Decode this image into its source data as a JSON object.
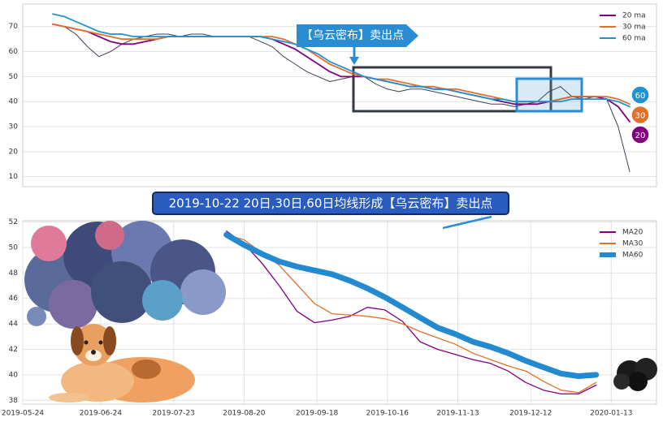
{
  "chart_data": [
    {
      "type": "line",
      "categories": [
        null,
        null,
        null,
        null,
        null,
        null,
        null,
        null,
        null,
        null,
        null,
        null,
        null,
        null,
        null,
        null,
        null,
        null,
        null,
        null,
        null,
        null,
        null,
        null,
        null,
        null,
        null,
        null,
        null,
        null,
        null,
        null,
        null,
        null,
        null,
        null,
        null,
        null,
        null,
        null,
        null,
        null,
        null,
        null,
        null,
        null,
        null,
        null,
        null,
        null,
        null
      ],
      "series": [
        {
          "color": "#3a4256",
          "values": [
            71,
            70,
            67,
            62,
            58,
            60,
            63,
            65,
            66,
            67,
            67,
            66,
            67,
            67,
            66,
            66,
            66,
            66,
            64,
            62,
            58,
            55,
            52,
            50,
            48,
            49,
            50,
            50,
            47,
            45,
            44,
            45,
            45,
            44,
            43,
            42,
            41,
            40,
            39,
            39,
            38,
            39,
            40,
            44,
            46,
            42,
            41,
            42,
            41,
            30,
            12
          ]
        },
        {
          "name": "20 ma",
          "color": "#800080",
          "end_label": "20",
          "values": [
            71,
            70,
            69,
            68,
            66,
            64,
            63,
            63,
            64,
            65,
            66,
            66,
            66,
            66,
            66,
            66,
            66,
            66,
            66,
            65,
            63,
            61,
            58,
            55,
            52,
            50,
            50,
            50,
            49,
            48,
            47,
            46,
            46,
            45,
            45,
            44,
            43,
            42,
            41,
            40,
            39,
            39,
            39,
            40,
            41,
            42,
            42,
            42,
            41,
            38,
            32
          ]
        },
        {
          "name": "30 ma",
          "color": "#e0702a",
          "end_label": "30",
          "values": [
            71,
            70,
            69,
            68,
            67,
            66,
            65,
            65,
            65,
            65,
            66,
            66,
            66,
            66,
            66,
            66,
            66,
            66,
            66,
            66,
            65,
            63,
            61,
            58,
            55,
            53,
            51,
            50,
            49,
            49,
            48,
            47,
            46,
            46,
            45,
            45,
            44,
            43,
            42,
            41,
            40,
            40,
            40,
            40,
            41,
            42,
            42,
            42,
            42,
            41,
            39
          ]
        },
        {
          "name": "60 ma",
          "color": "#1f93d2",
          "end_label": "60",
          "values": [
            75,
            74,
            72,
            70,
            68,
            67,
            67,
            66,
            66,
            66,
            66,
            66,
            66,
            66,
            66,
            66,
            66,
            66,
            66,
            65,
            64,
            63,
            61,
            59,
            56,
            54,
            52,
            50,
            49,
            48,
            47,
            46,
            46,
            45,
            45,
            44,
            43,
            42,
            41,
            41,
            40,
            40,
            40,
            40,
            40,
            41,
            41,
            41,
            41,
            40,
            38
          ]
        }
      ],
      "ylim": [
        6,
        79
      ],
      "yticks": [
        10,
        20,
        30,
        40,
        50,
        60,
        70
      ],
      "grid": true,
      "legend": "upper right",
      "annotation": "【乌云密布】卖出点"
    },
    {
      "type": "line",
      "x": [
        "2019-08-13",
        "2019-08-20",
        "2019-08-27",
        "2019-09-03",
        "2019-09-10",
        "2019-09-17",
        "2019-09-24",
        "2019-10-01",
        "2019-10-08",
        "2019-10-15",
        "2019-10-22",
        "2019-10-29",
        "2019-11-05",
        "2019-11-12",
        "2019-11-19",
        "2019-11-26",
        "2019-12-03",
        "2019-12-10",
        "2019-12-17",
        "2019-12-24",
        "2019-12-31",
        "2020-01-07"
      ],
      "series": [
        {
          "name": "MA20",
          "color": "#800080",
          "values": [
            51.3,
            50.3,
            48.8,
            47.0,
            45.0,
            44.1,
            44.3,
            44.6,
            45.3,
            45.1,
            44.2,
            42.6,
            42.0,
            41.6,
            41.2,
            40.9,
            40.3,
            39.4,
            38.8,
            38.5,
            38.5,
            39.2
          ]
        },
        {
          "name": "MA30",
          "color": "#e0702a",
          "values": [
            51.0,
            50.6,
            49.6,
            48.6,
            47.1,
            45.6,
            44.8,
            44.7,
            44.6,
            44.4,
            44.0,
            43.4,
            42.9,
            42.4,
            41.7,
            41.2,
            40.7,
            40.3,
            39.5,
            38.8,
            38.6,
            39.4
          ]
        },
        {
          "name": "MA60",
          "color": "#2389d0",
          "values": [
            51.0,
            50.2,
            49.5,
            48.9,
            48.5,
            48.2,
            47.9,
            47.4,
            46.8,
            46.1,
            45.3,
            44.5,
            43.7,
            43.2,
            42.6,
            42.2,
            41.7,
            41.1,
            40.6,
            40.1,
            39.9,
            40.0
          ]
        }
      ],
      "xlim": [
        "2019-05-24",
        "2020-01-31"
      ],
      "xticks": [
        "2019-05-24",
        "2019-06-24",
        "2019-07-23",
        "2019-08-20",
        "2019-09-18",
        "2019-10-16",
        "2019-11-13",
        "2019-12-12",
        "2020-01-13"
      ],
      "ylim": [
        37.7,
        52.1
      ],
      "yticks": [
        38,
        40,
        42,
        44,
        46,
        48,
        50,
        52
      ],
      "grid": true,
      "legend": "upper right",
      "annotation": "2019-10-22 20日,30日,60日均线形成【乌云密布】卖出点"
    }
  ]
}
